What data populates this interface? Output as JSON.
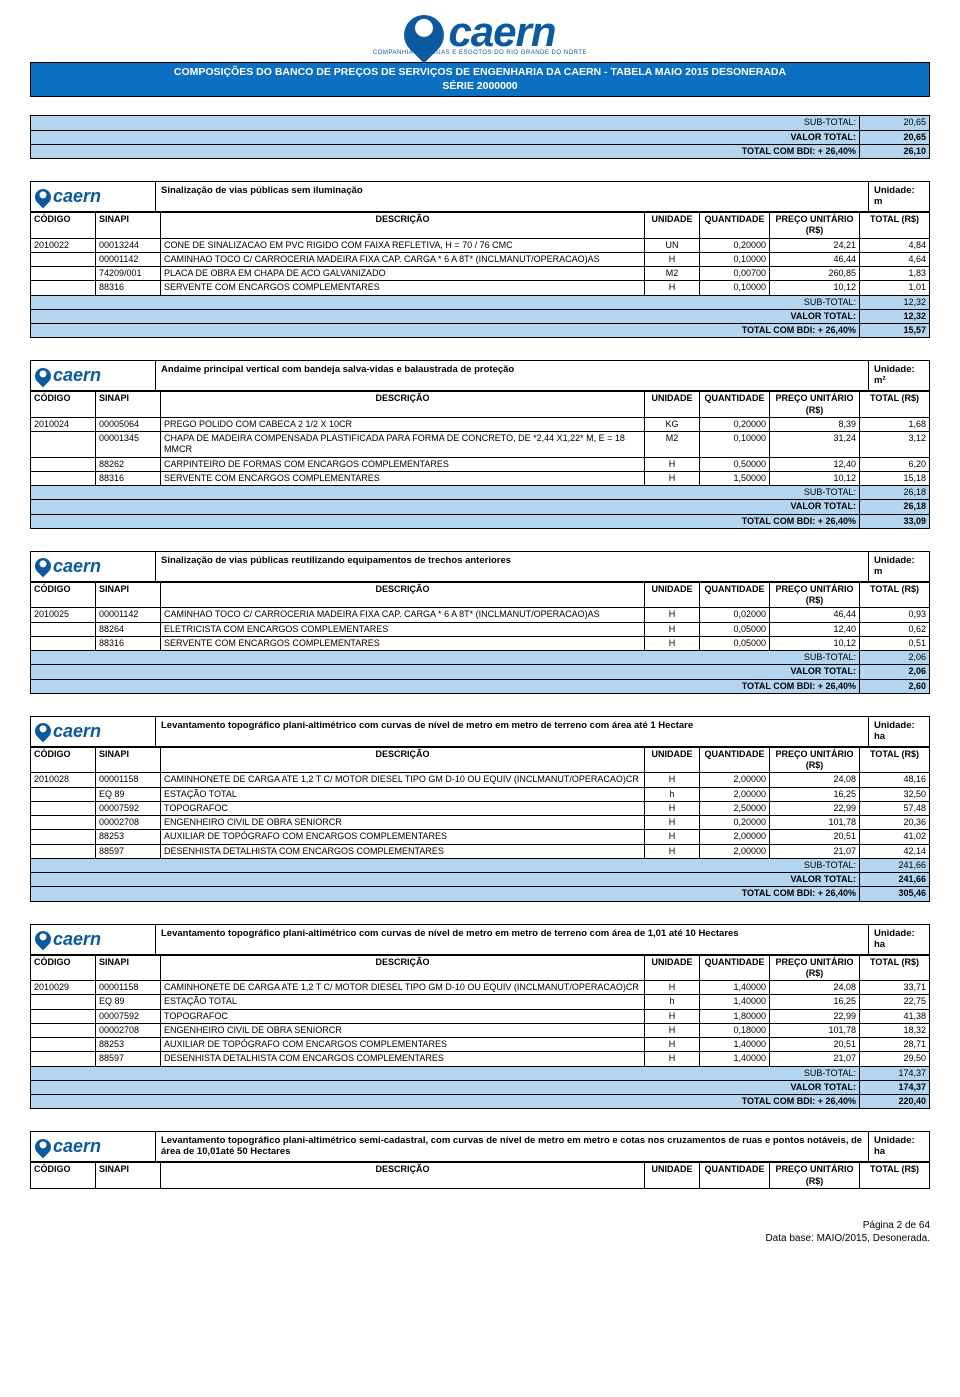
{
  "header_logo_text": "caern",
  "header_logo_sub": "COMPANHIA DE ÁGUAS E ESGOTOS DO RIO GRANDE DO NORTE",
  "doc_title_line1": "COMPOSIÇÕES DO BANCO DE PREÇOS DE SERVIÇOS DE ENGENHARIA DA CAERN - TABELA MAIO 2015 DESONERADA",
  "doc_title_line2": "SÉRIE 2000000",
  "labels": {
    "codigo": "CÓDIGO",
    "sinapi": "SINAPI",
    "descricao": "DESCRIÇÃO",
    "unidade": "UNIDADE",
    "quantidade": "QUANTIDADE",
    "preco": "PREÇO UNITÁRIO (R$)",
    "total": "TOTAL (R$)",
    "subtotal": "SUB-TOTAL:",
    "valortotal": "VALOR TOTAL:",
    "bdi": "TOTAL COM BDI: + 26,40%",
    "unidade_label": "Unidade:"
  },
  "top_summary": {
    "subtotal": "20,65",
    "valortotal": "20,65",
    "bdi": "26,10"
  },
  "sections": [
    {
      "title": "Sinalização de vias públicas sem iluminação",
      "unit": "m",
      "codigo": "2010022",
      "rows": [
        {
          "sinapi": "00013244",
          "desc": "CONE DE SINALIZACAO EM PVC RIGIDO COM FAIXA REFLETIVA, H = 70 / 76 CMC",
          "un": "UN",
          "qt": "0,20000",
          "pu": "24,21",
          "tot": "4,84"
        },
        {
          "sinapi": "00001142",
          "desc": "CAMINHAO TOCO C/ CARROCERIA MADEIRA FIXA CAP. CARGA * 6 A 8T* (INCLMANUT/OPERACAO)AS",
          "un": "H",
          "qt": "0,10000",
          "pu": "46,44",
          "tot": "4,64"
        },
        {
          "sinapi": "74209/001",
          "desc": "PLACA DE OBRA EM CHAPA DE ACO GALVANIZADO",
          "un": "M2",
          "qt": "0,00700",
          "pu": "260,85",
          "tot": "1,83"
        },
        {
          "sinapi": "88316",
          "desc": "SERVENTE COM ENCARGOS COMPLEMENTARES",
          "un": "H",
          "qt": "0,10000",
          "pu": "10,12",
          "tot": "1,01"
        }
      ],
      "subtotal": "12,32",
      "valortotal": "12,32",
      "bdi": "15,57"
    },
    {
      "title": "Andaime principal vertical com bandeja salva-vidas e balaustrada de proteção",
      "unit": "m²",
      "codigo": "2010024",
      "rows": [
        {
          "sinapi": "00005064",
          "desc": "PREGO POLIDO COM CABECA 2 1/2 X 10CR",
          "un": "KG",
          "qt": "0,20000",
          "pu": "8,39",
          "tot": "1,68"
        },
        {
          "sinapi": "00001345",
          "desc": "CHAPA DE MADEIRA COMPENSADA PLASTIFICADA PARA FORMA DE CONCRETO, DE *2,44 X1,22* M, E = 18 MMCR",
          "un": "M2",
          "qt": "0,10000",
          "pu": "31,24",
          "tot": "3,12"
        },
        {
          "sinapi": "88262",
          "desc": "CARPINTEIRO DE FORMAS COM ENCARGOS COMPLEMENTARES",
          "un": "H",
          "qt": "0,50000",
          "pu": "12,40",
          "tot": "6,20"
        },
        {
          "sinapi": "88316",
          "desc": "SERVENTE COM ENCARGOS COMPLEMENTARES",
          "un": "H",
          "qt": "1,50000",
          "pu": "10,12",
          "tot": "15,18"
        }
      ],
      "subtotal": "26,18",
      "valortotal": "26,18",
      "bdi": "33,09"
    },
    {
      "title": "Sinalização de vias públicas reutilizando equipamentos de trechos anteriores",
      "unit": "m",
      "codigo": "2010025",
      "rows": [
        {
          "sinapi": "00001142",
          "desc": "CAMINHAO TOCO C/ CARROCERIA MADEIRA FIXA CAP. CARGA * 6 A 8T* (INCLMANUT/OPERACAO)AS",
          "un": "H",
          "qt": "0,02000",
          "pu": "46,44",
          "tot": "0,93"
        },
        {
          "sinapi": "88264",
          "desc": "ELETRICISTA COM ENCARGOS COMPLEMENTARES",
          "un": "H",
          "qt": "0,05000",
          "pu": "12,40",
          "tot": "0,62"
        },
        {
          "sinapi": "88316",
          "desc": "SERVENTE COM ENCARGOS COMPLEMENTARES",
          "un": "H",
          "qt": "0,05000",
          "pu": "10,12",
          "tot": "0,51"
        }
      ],
      "subtotal": "2,06",
      "valortotal": "2,06",
      "bdi": "2,60"
    },
    {
      "title": "Levantamento topográfico plani-altimétrico com curvas de nível de metro em metro de terreno com área até 1 Hectare",
      "unit": "ha",
      "codigo": "2010028",
      "rows": [
        {
          "sinapi": "00001158",
          "desc": "CAMINHONETE DE CARGA ATE 1,2 T C/ MOTOR DIESEL TIPO GM D-10 OU EQUIV (INCLMANUT/OPERACAO)CR",
          "un": "H",
          "qt": "2,00000",
          "pu": "24,08",
          "tot": "48,16"
        },
        {
          "sinapi": "EQ 89",
          "desc": "ESTAÇÃO TOTAL",
          "un": "h",
          "qt": "2,00000",
          "pu": "16,25",
          "tot": "32,50"
        },
        {
          "sinapi": "00007592",
          "desc": "TOPOGRAFOC",
          "un": "H",
          "qt": "2,50000",
          "pu": "22,99",
          "tot": "57,48"
        },
        {
          "sinapi": "00002708",
          "desc": "ENGENHEIRO CIVIL DE OBRA SENIORCR",
          "un": "H",
          "qt": "0,20000",
          "pu": "101,78",
          "tot": "20,36"
        },
        {
          "sinapi": "88253",
          "desc": "AUXILIAR DE TOPÓGRAFO COM ENCARGOS COMPLEMENTARES",
          "un": "H",
          "qt": "2,00000",
          "pu": "20,51",
          "tot": "41,02"
        },
        {
          "sinapi": "88597",
          "desc": "DESENHISTA DETALHISTA COM ENCARGOS COMPLEMENTARES",
          "un": "H",
          "qt": "2,00000",
          "pu": "21,07",
          "tot": "42,14"
        }
      ],
      "subtotal": "241,66",
      "valortotal": "241,66",
      "bdi": "305,46"
    },
    {
      "title": "Levantamento topográfico plani-altimétrico com curvas de nível de metro em metro de terreno com área de 1,01 até 10 Hectares",
      "unit": "ha",
      "codigo": "2010029",
      "rows": [
        {
          "sinapi": "00001158",
          "desc": "CAMINHONETE DE CARGA ATE 1,2 T C/ MOTOR DIESEL TIPO GM D-10 OU EQUIV (INCLMANUT/OPERACAO)CR",
          "un": "H",
          "qt": "1,40000",
          "pu": "24,08",
          "tot": "33,71"
        },
        {
          "sinapi": "EQ 89",
          "desc": "ESTAÇÃO TOTAL",
          "un": "h",
          "qt": "1,40000",
          "pu": "16,25",
          "tot": "22,75"
        },
        {
          "sinapi": "00007592",
          "desc": "TOPOGRAFOC",
          "un": "H",
          "qt": "1,80000",
          "pu": "22,99",
          "tot": "41,38"
        },
        {
          "sinapi": "00002708",
          "desc": "ENGENHEIRO CIVIL DE OBRA SENIORCR",
          "un": "H",
          "qt": "0,18000",
          "pu": "101,78",
          "tot": "18,32"
        },
        {
          "sinapi": "88253",
          "desc": "AUXILIAR DE TOPÓGRAFO COM ENCARGOS COMPLEMENTARES",
          "un": "H",
          "qt": "1,40000",
          "pu": "20,51",
          "tot": "28,71"
        },
        {
          "sinapi": "88597",
          "desc": "DESENHISTA DETALHISTA COM ENCARGOS COMPLEMENTARES",
          "un": "H",
          "qt": "1,40000",
          "pu": "21,07",
          "tot": "29,50"
        }
      ],
      "subtotal": "174,37",
      "valortotal": "174,37",
      "bdi": "220,40"
    }
  ],
  "last_section": {
    "title": "Levantamento topográfico plani-altimétrico semi-cadastral, com curvas de nível de metro em metro e cotas nos cruzamentos de ruas e pontos notáveis, de área de 10,01até 50 Hectares",
    "unit": "ha"
  },
  "footer": {
    "page": "Página 2 de 64",
    "database": "Data base: MAIO/2015, Desonerada."
  },
  "colors": {
    "band_bg": "#0b6fc2",
    "summary_bg": "#b4d5f0",
    "brand": "#0b5aa0"
  }
}
